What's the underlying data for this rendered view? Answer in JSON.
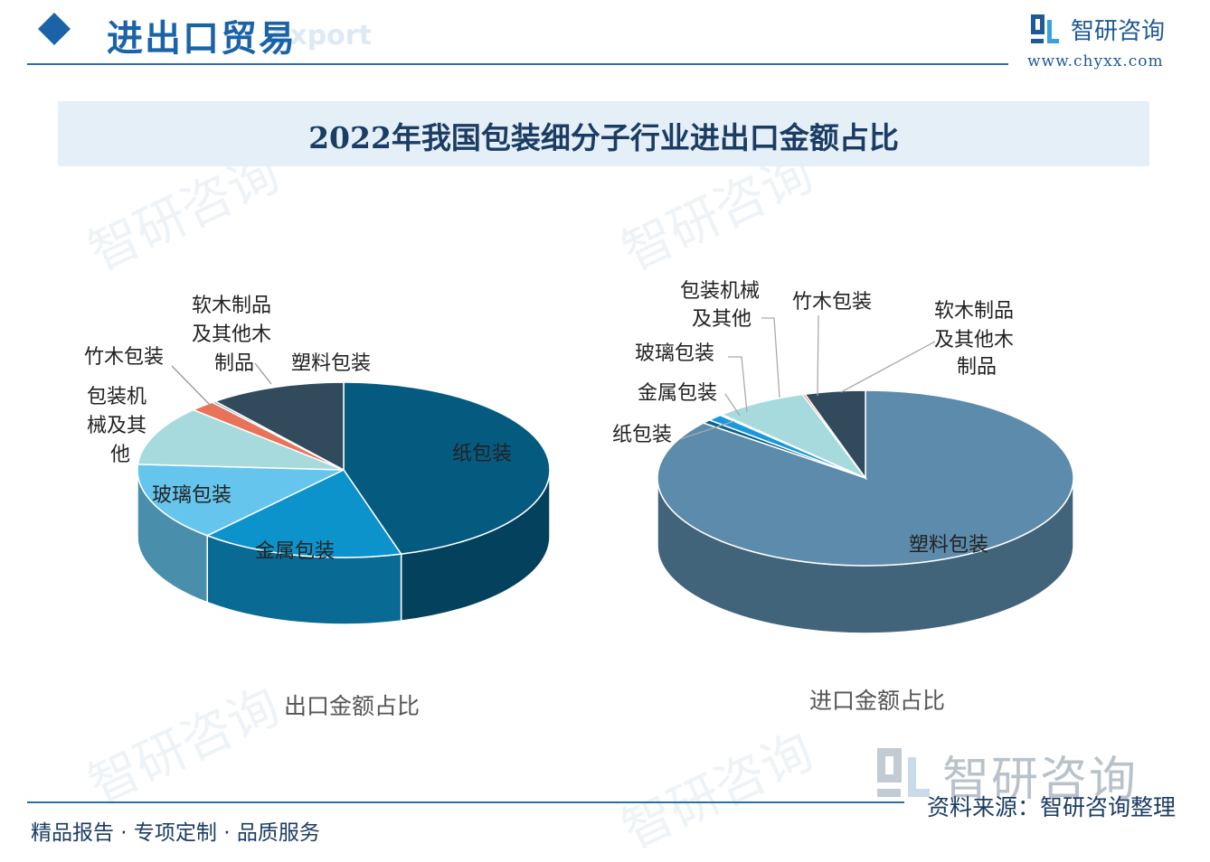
{
  "header": {
    "title": "进出口贸易",
    "subtitle": "export",
    "logo_text": "智研咨询",
    "logo_url": "www.chyxx.com"
  },
  "watermark_text": "智研咨询",
  "colors": {
    "accent": "#1b63a8",
    "title_band": "#e4eff8"
  },
  "chart_data": [
    {
      "type": "pie",
      "title": "2022年我国包装细分子行业进出口金额占比",
      "caption": "出口金额占比",
      "slices": [
        {
          "label": "纸包装",
          "value": 45.5,
          "color": "#055a80"
        },
        {
          "label": "金属包装",
          "value": 16.0,
          "color": "#0c93cc"
        },
        {
          "label": "玻璃包装",
          "value": 14.5,
          "color": "#66c5ed"
        },
        {
          "label": "包装机械及其他",
          "value": 11.0,
          "color": "#a6dadd"
        },
        {
          "label": "竹木包装",
          "value": 2.0,
          "color": "#e8735a"
        },
        {
          "label": "软木制品及其他木制品",
          "value": 0.3,
          "color": "#7aa0b8"
        },
        {
          "label": "塑料包装",
          "value": 10.7,
          "color": "#324b5c"
        }
      ]
    },
    {
      "type": "pie",
      "title": "2022年我国包装细分子行业进出口金额占比",
      "caption": "进口金额占比",
      "slices": [
        {
          "label": "塑料包装",
          "value": 85.8,
          "color": "#5c8bab"
        },
        {
          "label": "纸包装",
          "value": 0.7,
          "color": "#0b5e87"
        },
        {
          "label": "金属包装",
          "value": 1.2,
          "color": "#1899dd"
        },
        {
          "label": "玻璃包装",
          "value": 0.2,
          "color": "#66c5ed"
        },
        {
          "label": "包装机械及其他",
          "value": 7.2,
          "color": "#a6dadd"
        },
        {
          "label": "竹木包装",
          "value": 0.2,
          "color": "#e8735a"
        },
        {
          "label": "软木制品及其他木制品",
          "value": 4.7,
          "color": "#324b5c"
        }
      ]
    }
  ],
  "labels": {
    "export": {
      "paper": "纸包装",
      "metal": "金属包装",
      "glass": "玻璃包装",
      "machinery": [
        "包装机",
        "械及其",
        "他"
      ],
      "bamboo": "竹木包装",
      "cork": [
        "软木制品",
        "及其他木",
        "制品"
      ],
      "plastic": "塑料包装"
    },
    "import": {
      "plastic": "塑料包装",
      "paper": "纸包装",
      "metal": "金属包装",
      "glass": "玻璃包装",
      "machinery": [
        "包装机械",
        "及其他"
      ],
      "bamboo": "竹木包装",
      "cork": [
        "软木制品",
        "及其他木",
        "制品"
      ]
    }
  },
  "footer": {
    "left": "精品报告 · 专项定制 · 品质服务",
    "right": "资料来源：智研咨询整理",
    "logo_text": "智研咨询"
  }
}
